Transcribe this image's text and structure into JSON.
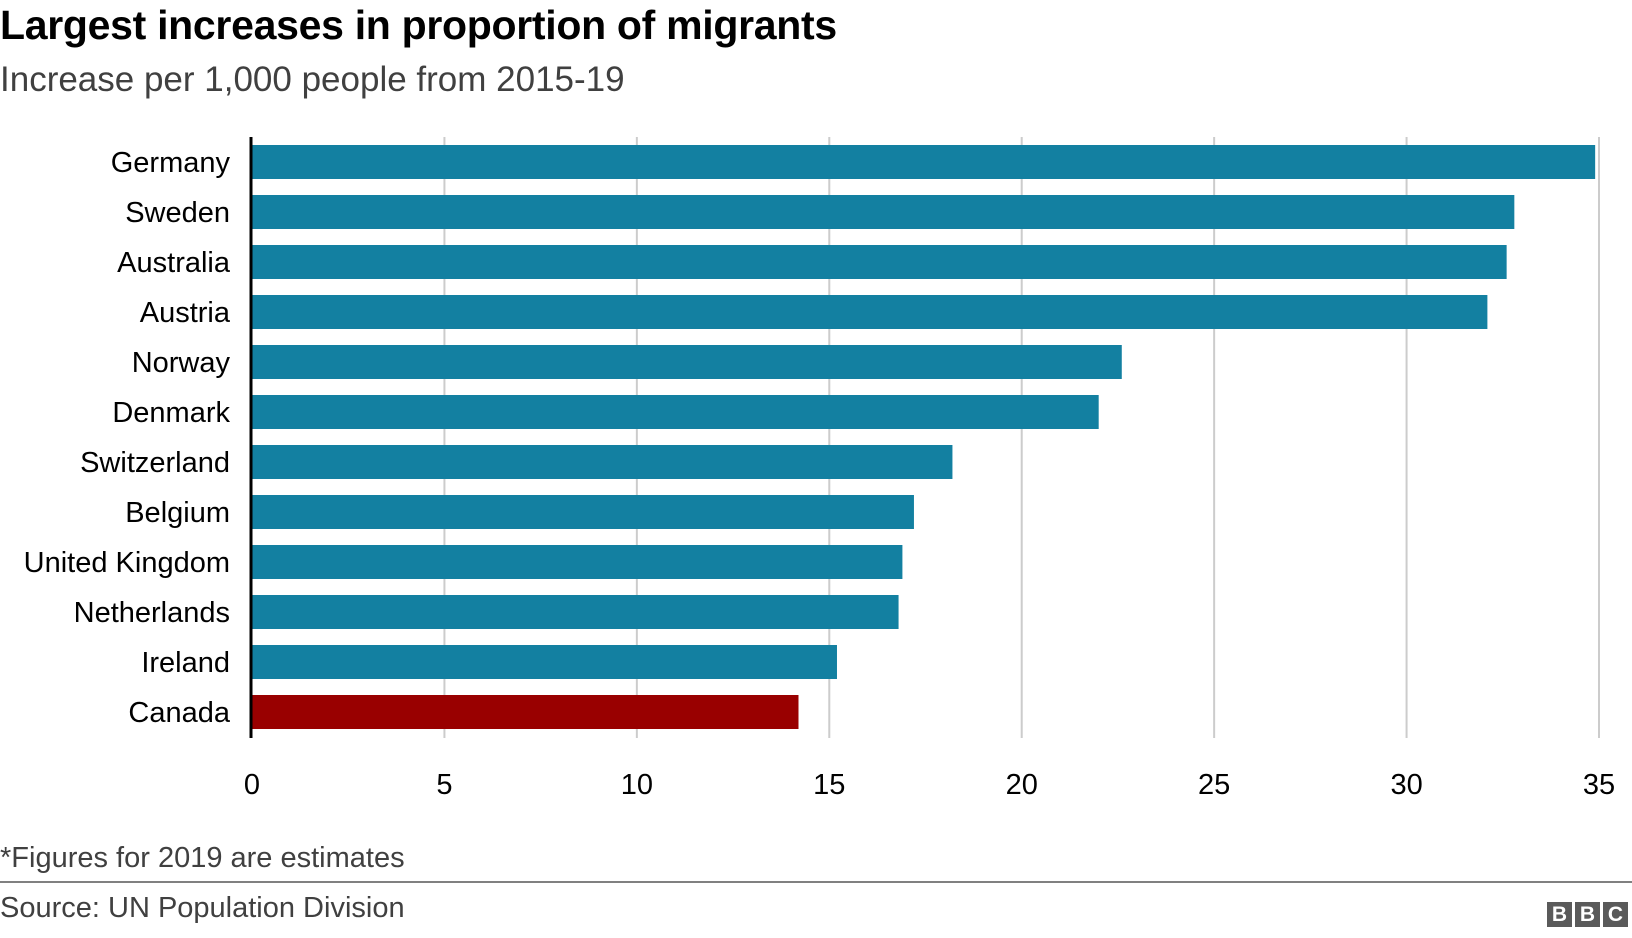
{
  "header": {
    "title": "Largest increases in proportion of migrants",
    "subtitle": "Increase per 1,000 people from 2015-19"
  },
  "footer": {
    "footnote": "*Figures for 2019 are estimates",
    "source": "Source: UN Population Division",
    "logo": [
      "B",
      "B",
      "C"
    ]
  },
  "colors": {
    "bar": "#1380A1",
    "highlight": "#990000",
    "grid": "#cccccc",
    "axis": "#000000"
  },
  "chart_data": {
    "type": "bar",
    "orientation": "horizontal",
    "title": "Largest increases in proportion of migrants",
    "subtitle": "Increase per 1,000 people from 2015-19",
    "xlabel": "",
    "ylabel": "",
    "categories": [
      "Germany",
      "Sweden",
      "Australia",
      "Austria",
      "Norway",
      "Denmark",
      "Switzerland",
      "Belgium",
      "United Kingdom",
      "Netherlands",
      "Ireland",
      "Canada"
    ],
    "values": [
      34.9,
      32.8,
      32.6,
      32.1,
      22.6,
      22.0,
      18.2,
      17.2,
      16.9,
      16.8,
      15.2,
      14.2
    ],
    "highlight": [
      "Canada"
    ],
    "xlim": [
      0,
      35
    ],
    "xticks": [
      0,
      5,
      10,
      15,
      20,
      25,
      30,
      35
    ],
    "grid": "vertical",
    "legend": "none"
  }
}
